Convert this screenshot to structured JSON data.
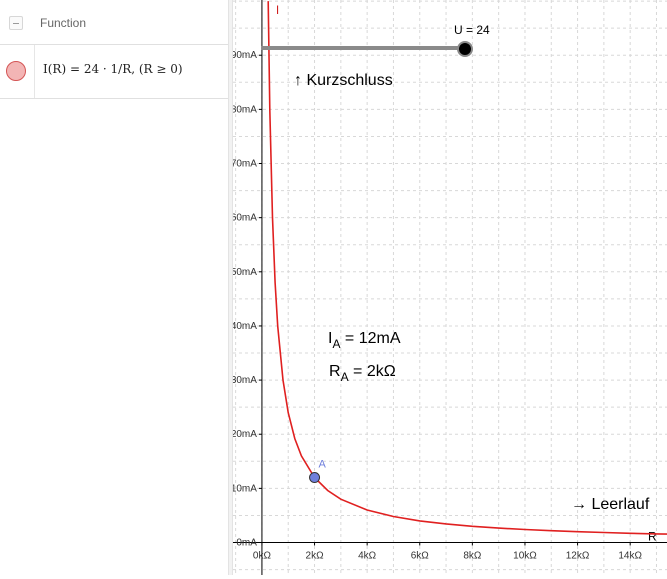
{
  "algebra_view": {
    "header_title": "Function",
    "function_def": "I(R) = 24 · 1/R,    (R ≥ 0)",
    "function_color": "#d45555"
  },
  "graphics_view": {
    "slider": {
      "label": "U = 24",
      "value": 24
    },
    "annotations": {
      "short_circuit": "↑ Kurzschluss",
      "ia": "I_A = 12mA",
      "ra": "R_A = 2kΩ",
      "open_circuit": "→ Leerlauf"
    },
    "point": {
      "label": "A",
      "x": 2,
      "y": 12,
      "color": "#6f7fdc"
    },
    "axis_name_x": "R",
    "axis_name_y": "I"
  },
  "chart_data": {
    "type": "line",
    "xlim": [
      -1.1,
      15.4
    ],
    "ylim": [
      -6.0,
      100.2
    ],
    "x_ticks": [
      0,
      2,
      4,
      6,
      8,
      10,
      12,
      14
    ],
    "x_tick_labels": [
      "0kΩ",
      "2kΩ",
      "4kΩ",
      "6kΩ",
      "8kΩ",
      "10kΩ",
      "12kΩ",
      "14kΩ"
    ],
    "y_ticks": [
      0,
      10,
      20,
      30,
      40,
      50,
      60,
      70,
      80,
      90
    ],
    "y_tick_labels": [
      "0mA",
      "10mA",
      "20mA",
      "30mA",
      "40mA",
      "50mA",
      "60mA",
      "70mA",
      "80mA",
      "90mA"
    ],
    "grid": true,
    "series": [
      {
        "formula": "I(R) = 24 / R",
        "color": "#e02020",
        "x": [
          0.24,
          0.3,
          0.4,
          0.5,
          0.6,
          0.8,
          1.0,
          1.25,
          1.5,
          2.0,
          2.5,
          3.0,
          4.0,
          5.0,
          6.0,
          7.0,
          8.0,
          9.0,
          10.0,
          11.0,
          12.0,
          13.0,
          14.0,
          15.0,
          15.4
        ],
        "y": [
          100,
          80,
          60,
          48,
          40,
          30,
          24,
          19.2,
          16,
          12,
          9.6,
          8,
          6,
          4.8,
          4,
          3.43,
          3,
          2.67,
          2.4,
          2.18,
          2,
          1.85,
          1.71,
          1.6,
          1.56
        ]
      }
    ]
  }
}
